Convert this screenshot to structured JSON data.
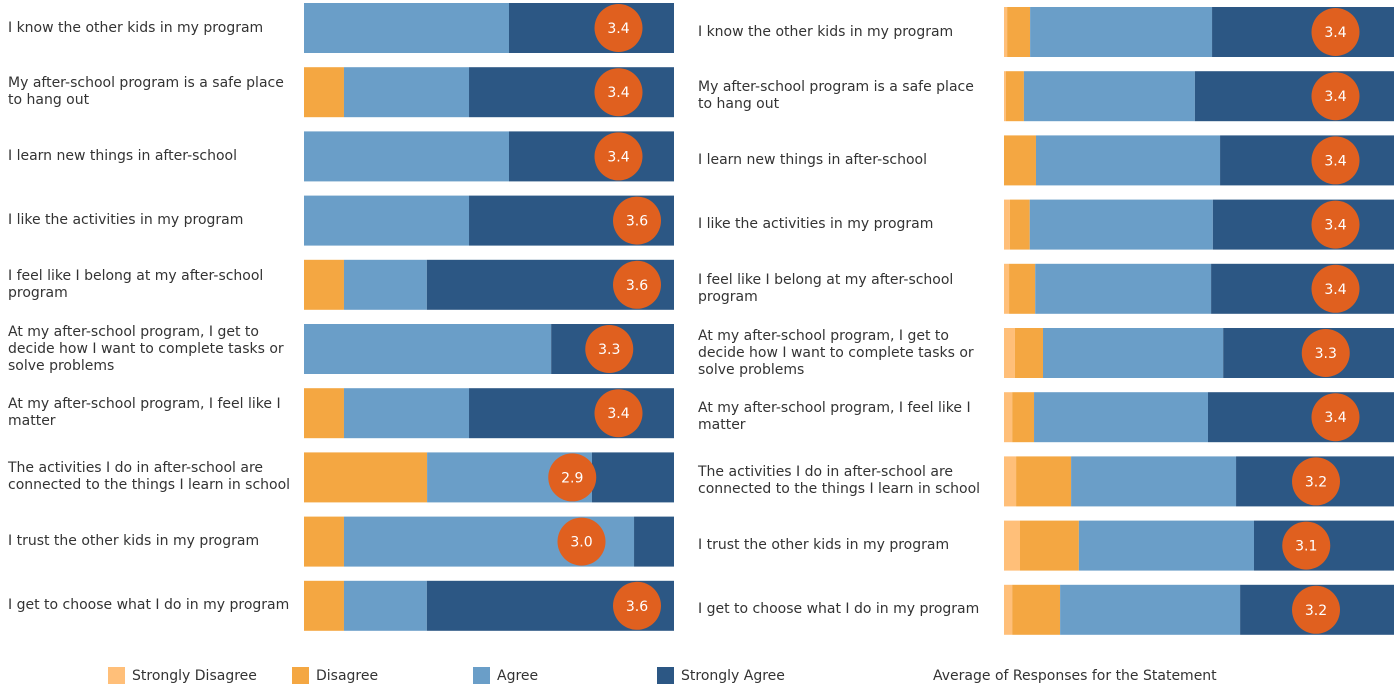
{
  "chart_data": [
    {
      "type": "bar",
      "categories": [
        "I know the other kids in my program",
        "My after-school program is a safe place to hang out",
        "I learn new things in after-school",
        "I like the activities in my program",
        "I feel like I belong at my after-school program",
        "At my after-school program, I get to decide how I want to complete tasks or solve problems",
        "At my after-school program, I feel like I matter",
        "The activities I do in after-school are connected to the things I learn in school",
        "I trust the other kids in my program",
        "I get to choose what I do in my program"
      ],
      "series": [
        {
          "name": "Strongly Disagree",
          "color": "#ffbf79",
          "values": [
            0,
            0,
            0,
            0,
            0,
            0,
            0,
            0,
            0,
            0
          ]
        },
        {
          "name": "Disagree",
          "color": "#f4a742",
          "values": [
            0,
            10.8,
            0,
            0,
            10.8,
            0,
            10.8,
            33.3,
            10.8,
            10.8
          ]
        },
        {
          "name": "Agree",
          "color": "#6a9ec8",
          "values": [
            55.4,
            33.8,
            55.4,
            44.6,
            22.4,
            66.8,
            33.8,
            44.6,
            78.4,
            22.4
          ]
        },
        {
          "name": "Strongly Agree",
          "color": "#2c5784",
          "values": [
            44.6,
            55.4,
            44.6,
            55.4,
            66.8,
            33.2,
            55.4,
            22.2,
            10.8,
            66.8
          ]
        }
      ],
      "average": {
        "name": "Average of Responses for the Statement",
        "color": "#e0601f",
        "values": [
          3.4,
          3.4,
          3.4,
          3.6,
          3.6,
          3.3,
          3.4,
          2.9,
          3,
          3.6
        ],
        "value_labels": [
          "3.4",
          "3.4",
          "3.4",
          "3.6",
          "3.6",
          "3.3",
          "3.4",
          "2.9",
          "3.0",
          "3.6"
        ]
      }
    },
    {
      "type": "bar",
      "categories": [
        "I know the other kids in my program",
        "My after-school program is a safe place to hang out",
        "I learn new things in after-school",
        "I like the activities in my program",
        "I feel like I belong at my after-school program",
        "At my after-school program, I get to decide how I want to complete tasks or solve problems",
        "At my after-school program, I feel like I matter",
        "The activities I do in after-school are connected to the things I learn in school",
        "I trust the other kids in my program",
        "I get to choose what I do in my program"
      ],
      "series": [
        {
          "color": "#ffbf79",
          "values": [
            0.8,
            0.5,
            0,
            1.5,
            1.3,
            2.8,
            2.1,
            3.1,
            4.1,
            2.1
          ]
        },
        {
          "color": "#f4a742",
          "values": [
            5.9,
            4.6,
            8.2,
            5.1,
            6.7,
            7.2,
            5.6,
            14.1,
            15.1,
            12.3
          ]
        },
        {
          "color": "#6a9ec8",
          "values": [
            46.7,
            43.8,
            47.2,
            46.9,
            45.1,
            46.2,
            44.6,
            42.3,
            44.9,
            46.2
          ]
        },
        {
          "color": "#2c5784",
          "values": [
            46.7,
            51.0,
            44.6,
            46.4,
            46.9,
            43.8,
            47.7,
            40.5,
            35.9,
            39.5
          ]
        }
      ],
      "average": {
        "color": "#e0601f",
        "values": [
          3.4,
          3.4,
          3.4,
          3.4,
          3.4,
          3.3,
          3.4,
          3.2,
          3.1,
          3.2
        ],
        "value_labels": [
          "3.4",
          "3.4",
          "3.4",
          "3.4",
          "3.4",
          "3.3",
          "3.4",
          "3.2",
          "3.1",
          "3.2"
        ]
      }
    }
  ]
}
